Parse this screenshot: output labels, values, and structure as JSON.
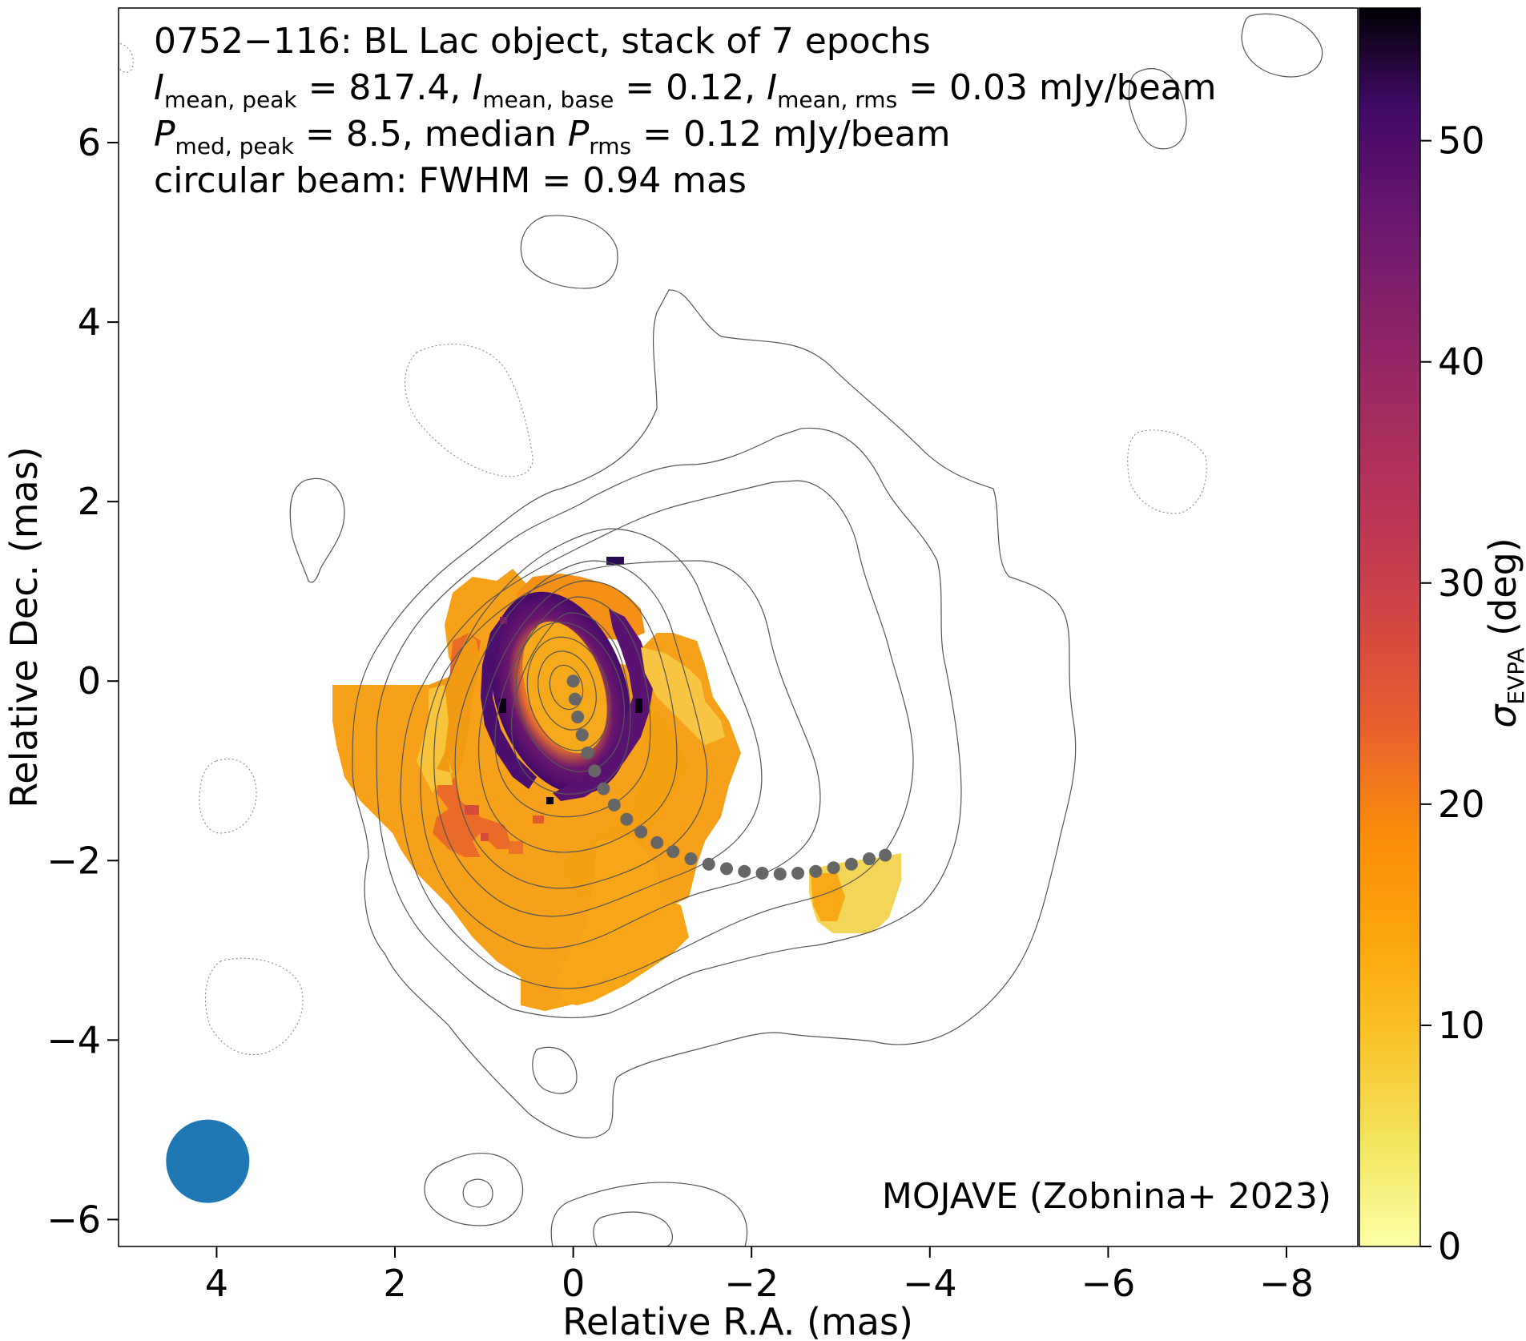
{
  "chart_data": {
    "type": "heatmap",
    "title_lines": [
      "0752−116: BL Lac object, stack of 7 epochs",
      "I_mean,peak = 817.4, I_mean,base = 0.12, I_mean,rms = 0.03 mJy/beam",
      "P_med,peak = 8.5, median P_rms = 0.12 mJy/beam",
      "circular beam: FWHM = 0.94 mas"
    ],
    "title": {
      "line1": "0752−116: BL Lac object, stack of 7 epochs",
      "line2": {
        "i": "I",
        "peak_sub": "mean, peak",
        "peak_val": " = 817.4, ",
        "base_sub": "mean, base",
        "base_val": " = 0.12, ",
        "rms_sub": "mean, rms",
        "rms_val": " = 0.03 mJy/beam"
      },
      "line3": {
        "p": "P",
        "peak_sub": "med, peak",
        "peak_val": " = 8.5, median ",
        "rms_sub": "rms",
        "rms_val": " = 0.12 mJy/beam"
      },
      "line4": "circular beam: FWHM = 0.94 mas"
    },
    "credit": "MOJAVE (Zobnina+ 2023)",
    "xlabel": "Relative R.A. (mas)",
    "ylabel": "Relative Dec. (mas)",
    "x_ticks": [
      "4",
      "2",
      "0",
      "−2",
      "−4",
      "−6",
      "−8"
    ],
    "y_ticks": [
      "−6",
      "−4",
      "−2",
      "0",
      "2",
      "4",
      "6"
    ],
    "x_tick_values": [
      4,
      2,
      0,
      -2,
      -4,
      -6,
      -8
    ],
    "y_tick_values": [
      -6,
      -4,
      -2,
      0,
      2,
      4,
      6
    ],
    "xlim": [
      5.1,
      -8.8
    ],
    "ylim": [
      -6.3,
      7.5
    ],
    "colorbar": {
      "label_symbol": "σ",
      "label_sub": "EVPA",
      "label_unit": " (deg)",
      "ticks": [
        "0",
        "10",
        "20",
        "30",
        "40",
        "50"
      ],
      "tick_values": [
        0,
        10,
        20,
        30,
        40,
        50
      ],
      "range": [
        0,
        56
      ],
      "colormap": "inferno_r"
    },
    "beam": {
      "fwhm_mas": 0.94,
      "center_ra": 4.1,
      "center_dec": -5.35,
      "color": "#1f77b4"
    },
    "jet_ridge_line": {
      "color": "#666666",
      "points": [
        [
          0.0,
          0.0
        ],
        [
          -0.02,
          -0.2
        ],
        [
          -0.05,
          -0.4
        ],
        [
          -0.1,
          -0.6
        ],
        [
          -0.16,
          -0.8
        ],
        [
          -0.24,
          -1.0
        ],
        [
          -0.34,
          -1.2
        ],
        [
          -0.46,
          -1.38
        ],
        [
          -0.6,
          -1.54
        ],
        [
          -0.76,
          -1.68
        ],
        [
          -0.94,
          -1.8
        ],
        [
          -1.12,
          -1.9
        ],
        [
          -1.32,
          -1.98
        ],
        [
          -1.52,
          -2.04
        ],
        [
          -1.72,
          -2.09
        ],
        [
          -1.92,
          -2.12
        ],
        [
          -2.12,
          -2.14
        ],
        [
          -2.32,
          -2.15
        ],
        [
          -2.52,
          -2.14
        ],
        [
          -2.72,
          -2.12
        ],
        [
          -2.92,
          -2.08
        ],
        [
          -3.12,
          -2.04
        ],
        [
          -3.32,
          -1.98
        ],
        [
          -3.5,
          -1.94
        ]
      ]
    },
    "polarization_region": {
      "description_values": "EVPA std (deg) per region",
      "core_ring_sigma": 44,
      "core_center_sigma": 8,
      "east_edge_sigma": 22,
      "southwest_jet_sigma": 14,
      "west_knot_sigma": 4,
      "north_spot_sigma": 55
    },
    "contour_levels_relative": [
      "-0.03 (dotted)",
      "0.03",
      "0.06",
      "0.12",
      "0.25",
      "0.5",
      "1",
      "2",
      "4",
      "8",
      "16",
      "32",
      "64"
    ]
  }
}
